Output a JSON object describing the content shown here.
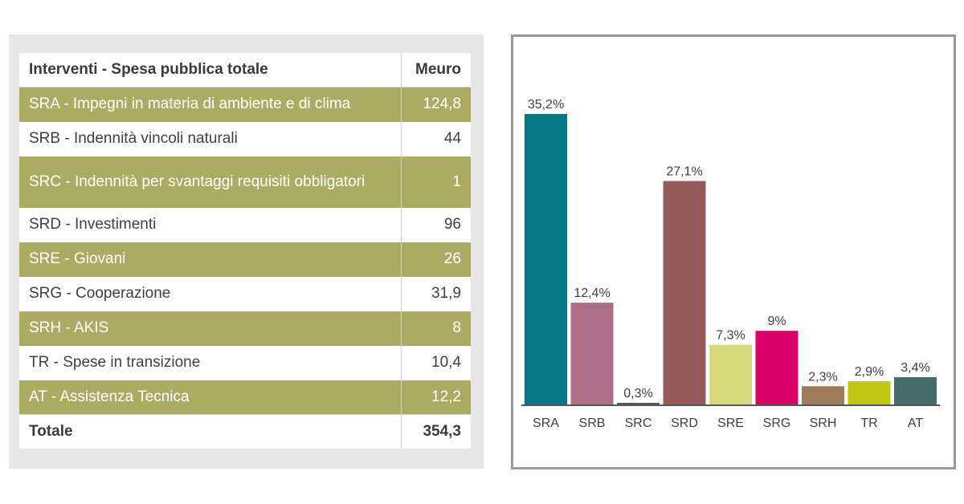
{
  "table": {
    "header": {
      "label": "Interventi - Spesa pubblica totale",
      "unit": "Meuro"
    },
    "rows": [
      {
        "label": "SRA - Impegni in materia di ambiente e di clima",
        "value": "124,8"
      },
      {
        "label": "SRB - Indennità vincoli naturali",
        "value": "44"
      },
      {
        "label": "SRC - Indennità per svantaggi requisiti obbligatori",
        "value": "1"
      },
      {
        "label": "SRD - Investimenti",
        "value": "96"
      },
      {
        "label": "SRE - Giovani",
        "value": "26"
      },
      {
        "label": "SRG - Cooperazione",
        "value": "31,9"
      },
      {
        "label": "SRH - AKIS",
        "value": "8"
      },
      {
        "label": "TR - Spese in transizione",
        "value": "10,4"
      },
      {
        "label": "AT - Assistenza Tecnica",
        "value": "12,2"
      }
    ],
    "total": {
      "label": "Totale",
      "value": "354,3"
    },
    "colors": {
      "band": "#abab63",
      "plain": "#ffffff"
    }
  },
  "chart_data": {
    "type": "bar",
    "categories": [
      "SRA",
      "SRB",
      "SRC",
      "SRD",
      "SRE",
      "SRG",
      "SRH",
      "TR",
      "AT"
    ],
    "values": [
      35.2,
      12.4,
      0.3,
      27.1,
      7.3,
      9,
      2.3,
      2.9,
      3.4
    ],
    "value_labels": [
      "35,2%",
      "12,4%",
      "0,3%",
      "27,1%",
      "7,3%",
      "9%",
      "2,3%",
      "2,9%",
      "3,4%"
    ],
    "colors": [
      "#087886",
      "#ad6d88",
      "#555555",
      "#975a5a",
      "#d8d97a",
      "#dc0066",
      "#9d7a58",
      "#c1c711",
      "#466b6b"
    ],
    "title": "",
    "xlabel": "",
    "ylabel": "",
    "ylim": [
      0,
      35.2
    ],
    "grid": false,
    "legend": "none"
  }
}
